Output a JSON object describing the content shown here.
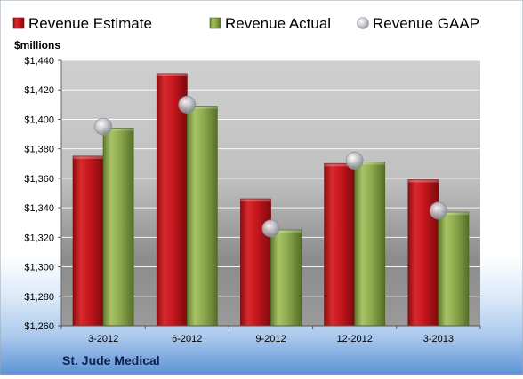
{
  "chart_data": {
    "type": "bar",
    "title": "St. Jude Medical",
    "ylabel": "$millions",
    "xlabel": "",
    "categories": [
      "3-2012",
      "6-2012",
      "9-2012",
      "12-2012",
      "3-2013"
    ],
    "ylim": [
      1260,
      1440
    ],
    "yticks": [
      1260,
      1280,
      1300,
      1320,
      1340,
      1360,
      1380,
      1400,
      1420,
      1440
    ],
    "ytick_labels": [
      "$1,260",
      "$1,280",
      "$1,300",
      "$1,320",
      "$1,340",
      "$1,360",
      "$1,380",
      "$1,400",
      "$1,420",
      "$1,440"
    ],
    "grid": true,
    "legend_position": "top",
    "series": [
      {
        "name": "Revenue Estimate",
        "kind": "bar",
        "color": "#c8141c",
        "values": [
          1375,
          1431,
          1346,
          1370,
          1359
        ]
      },
      {
        "name": "Revenue Actual",
        "kind": "bar",
        "color": "#8caa4c",
        "values": [
          1394,
          1409,
          1325,
          1371,
          1337
        ]
      },
      {
        "name": "Revenue GAAP",
        "kind": "marker",
        "color": "#b8bcc4",
        "values": [
          1395,
          1410,
          1326,
          1372,
          1338
        ]
      }
    ]
  }
}
